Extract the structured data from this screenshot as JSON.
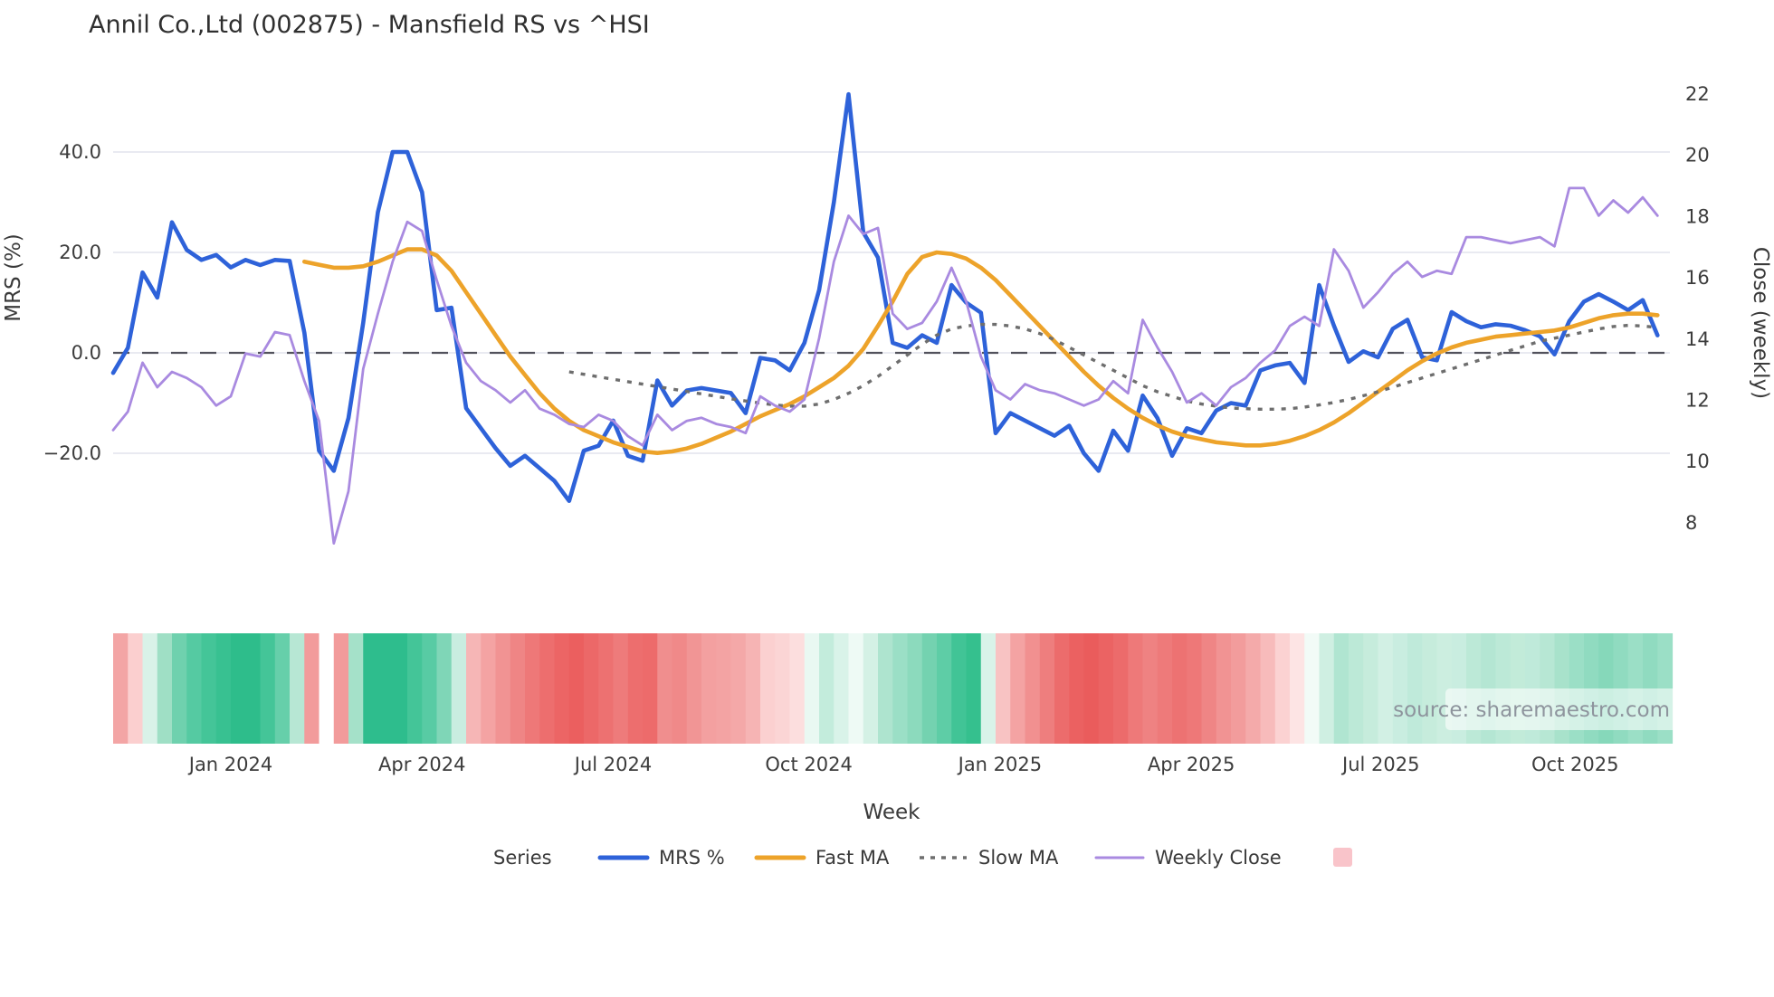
{
  "title": "Annil Co.,Ltd (002875) - Mansfield RS vs ^HSI",
  "watermark": "source: sharemaestro.com",
  "chart_data": {
    "type": "line",
    "title": "Annil Co.,Ltd (002875) - Mansfield RS vs ^HSI",
    "x_axis": {
      "label": "Week",
      "tick_labels": [
        "Jan 2024",
        "Apr 2024",
        "Jul 2024",
        "Oct 2024",
        "Jan 2025",
        "Apr 2025",
        "Jul 2025",
        "Oct 2025"
      ],
      "tick_weeks": [
        8,
        21,
        34,
        47.3,
        60.3,
        73.3,
        86.2,
        99.4
      ],
      "weeks_total": 106
    },
    "left_axis": {
      "label": "MRS (%)",
      "ticks": [
        40,
        20,
        0,
        -20
      ],
      "tick_labels": [
        "40.0",
        "20.0",
        "0.0",
        "−20.0"
      ],
      "gridlines": true,
      "zero_line": {
        "value": 0,
        "style": "dashed",
        "color": "#52525c"
      }
    },
    "right_axis": {
      "label": "Close (weekly)",
      "ticks": [
        22,
        20,
        18,
        16,
        14,
        12,
        10,
        8
      ],
      "tick_labels": [
        "22",
        "20",
        "18",
        "16",
        "14",
        "12",
        "10",
        "8"
      ]
    },
    "legend": {
      "title": "Series",
      "extra_swatch_color": "#f9c4ca"
    },
    "series": [
      {
        "name": "MRS %",
        "axis": "left",
        "color": "#2e62d9",
        "style": "solid",
        "width": 4.6,
        "start_week": 0,
        "values": [
          -4,
          1,
          16,
          11,
          26,
          20.5,
          18.5,
          19.5,
          17,
          18.5,
          17.5,
          18.5,
          18.3,
          4,
          -19.5,
          -23.5,
          -13,
          6,
          28,
          40,
          40,
          32,
          8.5,
          9,
          -11,
          -15,
          -19,
          -22.5,
          -20.5,
          -23,
          -25.5,
          -29.5,
          -19.5,
          -18.5,
          -13.5,
          -20.5,
          -21.5,
          -5.5,
          -10.5,
          -7.5,
          -7,
          -7.5,
          -8,
          -12,
          -1,
          -1.5,
          -3.5,
          2,
          12.5,
          30,
          51.5,
          24,
          19,
          2,
          1,
          3.5,
          2,
          13.5,
          10,
          8,
          -16,
          -12,
          -13.5,
          -15,
          -16.5,
          -14.5,
          -20,
          -23.5,
          -15.5,
          -19.5,
          -8.5,
          -13,
          -20.5,
          -15,
          -16,
          -11.5,
          -10,
          -10.5,
          -3.5,
          -2.5,
          -2,
          -6,
          13.5,
          5.4,
          -1.8,
          0.3,
          -0.9,
          4.8,
          6.6,
          -0.9,
          -1.5,
          8.1,
          6.3,
          5.1,
          5.7,
          5.4,
          4.5,
          3.3,
          -0.3,
          6.3,
          10.2,
          11.7,
          10.2,
          8.5,
          10.5,
          3.5
        ]
      },
      {
        "name": "Fast MA",
        "axis": "right",
        "color": "#eda32a",
        "style": "solid",
        "width": 4.6,
        "start_week": 13,
        "values": [
          16.5,
          16.4,
          16.3,
          16.3,
          16.35,
          16.5,
          16.7,
          16.9,
          16.9,
          16.7,
          16.2,
          15.5,
          14.8,
          14.1,
          13.4,
          12.8,
          12.2,
          11.7,
          11.3,
          11.0,
          10.8,
          10.6,
          10.45,
          10.3,
          10.25,
          10.3,
          10.4,
          10.55,
          10.75,
          10.95,
          11.2,
          11.45,
          11.65,
          11.85,
          12.1,
          12.4,
          12.7,
          13.1,
          13.65,
          14.4,
          15.2,
          16.1,
          16.65,
          16.8,
          16.75,
          16.6,
          16.3,
          15.9,
          15.4,
          14.9,
          14.4,
          13.9,
          13.4,
          12.9,
          12.45,
          12.05,
          11.7,
          11.4,
          11.15,
          10.95,
          10.8,
          10.7,
          10.6,
          10.55,
          10.5,
          10.5,
          10.55,
          10.65,
          10.8,
          11.0,
          11.25,
          11.55,
          11.9,
          12.25,
          12.6,
          12.95,
          13.25,
          13.5,
          13.7,
          13.85,
          13.95,
          14.05,
          14.1,
          14.15,
          14.2,
          14.25,
          14.35,
          14.5,
          14.65,
          14.75,
          14.8,
          14.8,
          14.75
        ]
      },
      {
        "name": "Slow MA",
        "axis": "right",
        "color": "#6e6e6e",
        "style": "dotted",
        "width": 3.4,
        "start_week": 31,
        "values": [
          12.9,
          12.82,
          12.74,
          12.66,
          12.58,
          12.5,
          12.42,
          12.34,
          12.26,
          12.18,
          12.1,
          12.02,
          11.95,
          11.88,
          11.82,
          11.78,
          11.78,
          11.85,
          12.0,
          12.2,
          12.45,
          12.75,
          13.1,
          13.45,
          13.8,
          14.1,
          14.3,
          14.4,
          14.45,
          14.45,
          14.4,
          14.3,
          14.15,
          13.95,
          13.7,
          13.45,
          13.2,
          12.95,
          12.7,
          12.45,
          12.25,
          12.1,
          11.95,
          11.85,
          11.78,
          11.72,
          11.7,
          11.68,
          11.68,
          11.7,
          11.75,
          11.82,
          11.9,
          12.0,
          12.12,
          12.25,
          12.4,
          12.55,
          12.7,
          12.85,
          13.0,
          13.15,
          13.3,
          13.45,
          13.6,
          13.75,
          13.9,
          14.0,
          14.1,
          14.2,
          14.3,
          14.38,
          14.42,
          14.4,
          14.35
        ]
      },
      {
        "name": "Weekly Close",
        "axis": "right",
        "color": "#a98ae0",
        "style": "solid",
        "width": 2.8,
        "start_week": 0,
        "values": [
          11.0,
          11.6,
          13.2,
          12.4,
          12.9,
          12.7,
          12.4,
          11.8,
          12.1,
          13.5,
          13.4,
          14.2,
          14.1,
          12.6,
          11.3,
          7.3,
          9.0,
          13.0,
          14.8,
          16.5,
          17.8,
          17.5,
          15.9,
          14.4,
          13.2,
          12.6,
          12.3,
          11.9,
          12.3,
          11.7,
          11.5,
          11.2,
          11.1,
          11.5,
          11.3,
          10.8,
          10.5,
          11.5,
          11.0,
          11.3,
          11.4,
          11.2,
          11.1,
          10.9,
          12.1,
          11.8,
          11.6,
          12.0,
          14.0,
          16.5,
          18.0,
          17.4,
          17.6,
          14.8,
          14.3,
          14.5,
          15.2,
          16.3,
          15.2,
          13.4,
          12.3,
          12.0,
          12.5,
          12.3,
          12.2,
          12.0,
          11.8,
          12.0,
          12.6,
          12.2,
          14.6,
          13.7,
          12.9,
          11.9,
          12.2,
          11.8,
          12.4,
          12.7,
          13.2,
          13.6,
          14.4,
          14.7,
          14.4,
          16.9,
          16.2,
          15.0,
          15.5,
          16.1,
          16.5,
          16.0,
          16.2,
          16.1,
          17.3,
          17.3,
          17.2,
          17.1,
          17.2,
          17.3,
          17.0,
          18.9,
          18.9,
          18.0,
          18.5,
          18.1,
          18.6,
          18.0
        ]
      }
    ],
    "heatmap_strip": {
      "colors": [
        "#f3a5a5",
        "#fbcfcf",
        "#d9f2e8",
        "#9fdfc5",
        "#6fd1ae",
        "#55caa2",
        "#44c598",
        "#38c191",
        "#2ebd8b",
        "#2ebd8b",
        "#44c598",
        "#66cfaa",
        "#b7e7d4",
        "#f29b9b",
        "#ffffff",
        "#f29b9b",
        "#a5e1c9",
        "#2ebd8d",
        "#2ebd8d",
        "#2ebd8d",
        "#44c598",
        "#58cba4",
        "#7fd6b7",
        "#c9ede0",
        "#f6b6b6",
        "#f4a3a3",
        "#f19393",
        "#ef8585",
        "#ee7878",
        "#ed6e6e",
        "#ec6565",
        "#eb5f5f",
        "#ec6868",
        "#ed7171",
        "#ee7b7b",
        "#ed6e6e",
        "#ed6b6b",
        "#f08e8e",
        "#f08989",
        "#f19595",
        "#f3a0a0",
        "#f3a3a3",
        "#f4a8a8",
        "#f6b4b4",
        "#fbd0d0",
        "#fbd5d5",
        "#fcdede",
        "#e9f8f2",
        "#c3ecdc",
        "#d9f3e9",
        "#eefaf5",
        "#d4f1e5",
        "#aee4cf",
        "#9bdfc6",
        "#8cdabd",
        "#74d2b0",
        "#5ecda6",
        "#41c496",
        "#35c08e",
        "#d9f3e9",
        "#f8c3c3",
        "#f4a3a3",
        "#f19090",
        "#ee7e7e",
        "#ec6c6c",
        "#eb6161",
        "#ea5c5c",
        "#eb6363",
        "#ec6b6b",
        "#ee7979",
        "#ef8282",
        "#ee7a7a",
        "#ed7272",
        "#ee7878",
        "#ef8585",
        "#f19393",
        "#f29c9c",
        "#f4aaaa",
        "#f7bbbb",
        "#fbd2d2",
        "#fde4e4",
        "#f2fbf7",
        "#cfefe2",
        "#b0e5d1",
        "#bce9d7",
        "#c6ecdc",
        "#d2f0e4",
        "#c9ede0",
        "#bfeada",
        "#c6ecdc",
        "#cceee0",
        "#c9ede0",
        "#bce9d7",
        "#b4e6d3",
        "#bce9d7",
        "#c2ebd9",
        "#bfeada",
        "#b7e7d4",
        "#a8e2cb",
        "#9bdfc6",
        "#90dbc0",
        "#86d8ba",
        "#90dbc0",
        "#9bdfc6",
        "#90dbc0",
        "#9bdfc6"
      ]
    }
  }
}
